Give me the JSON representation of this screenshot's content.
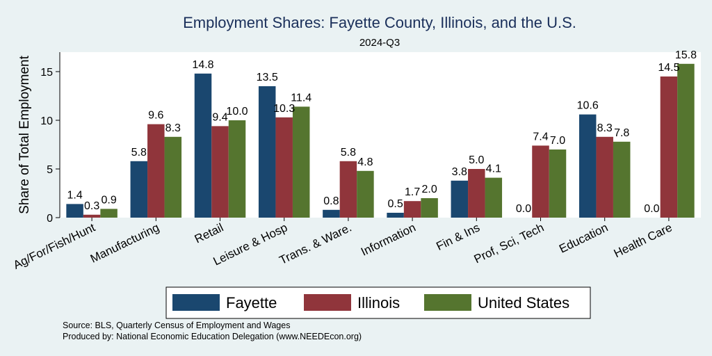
{
  "chart_data": {
    "type": "bar",
    "title": "Employment Shares: Fayette County, Illinois, and the U.S.",
    "subtitle": "2024-Q3",
    "ylabel": "Share of Total Employment",
    "xlabel": "",
    "ylim": [
      0,
      17
    ],
    "yticks": [
      0,
      5,
      10,
      15
    ],
    "grid": false,
    "legend_position": "bottom",
    "categories": [
      "Ag/For/Fish/Hunt",
      "Manufacturing",
      "Retail",
      "Leisure & Hosp",
      "Trans. & Ware.",
      "Information",
      "Fin & Ins",
      "Prof, Sci, Tech",
      "Education",
      "Health Care"
    ],
    "series": [
      {
        "name": "Fayette",
        "color": "#1a476f",
        "values": [
          1.4,
          5.8,
          14.8,
          13.5,
          0.8,
          0.5,
          3.8,
          0.0,
          10.6,
          0.0
        ]
      },
      {
        "name": "Illinois",
        "color": "#90353b",
        "values": [
          0.3,
          9.6,
          9.4,
          10.3,
          5.8,
          1.7,
          5.0,
          7.4,
          8.3,
          14.5
        ]
      },
      {
        "name": "United States",
        "color": "#55752f",
        "values": [
          0.9,
          8.3,
          10.0,
          11.4,
          4.8,
          2.0,
          4.1,
          7.0,
          7.8,
          15.8
        ]
      }
    ]
  },
  "notes": {
    "source": "Source: BLS, Quarterly Census of Employment and Wages",
    "produced_by": "Produced by: National Economic Education Delegation (www.NEEDEcon.org)"
  }
}
